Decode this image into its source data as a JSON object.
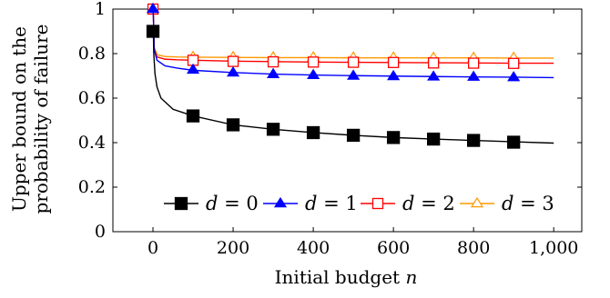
{
  "chart_data": {
    "type": "line",
    "xlabel": "Initial budget",
    "xlabel_var": "n",
    "ylabel_line1": "Upper bound on the",
    "ylabel_line2": "probability of failure",
    "xlim": [
      -100,
      1070
    ],
    "ylim": [
      0,
      1
    ],
    "xticks": [
      0,
      200,
      400,
      600,
      800,
      1000
    ],
    "xtick_labels": [
      "0",
      "200",
      "400",
      "600",
      "800",
      "1,000"
    ],
    "yticks": [
      0,
      0.2,
      0.4,
      0.6,
      0.8,
      1
    ],
    "ytick_labels": [
      "0",
      "0.2",
      "0.4",
      "0.6",
      "0.8",
      "1"
    ],
    "grid": false,
    "legend_position": "bottom-right",
    "marker_x": [
      0,
      100,
      200,
      300,
      400,
      500,
      600,
      700,
      800,
      900
    ],
    "series": [
      {
        "name": "d = 0",
        "var": "d",
        "op": "=",
        "val": "0",
        "color": "#000000",
        "marker": "square-filled",
        "curve": {
          "x": [
            1,
            2,
            5,
            10,
            20,
            50,
            100,
            200,
            300,
            400,
            500,
            600,
            700,
            800,
            900,
            1000
          ],
          "y": [
            0.9,
            0.8,
            0.71,
            0.65,
            0.6,
            0.55,
            0.52,
            0.48,
            0.46,
            0.445,
            0.433,
            0.423,
            0.416,
            0.41,
            0.404,
            0.398
          ]
        },
        "marker_y": [
          0.9,
          0.52,
          0.48,
          0.46,
          0.445,
          0.433,
          0.423,
          0.416,
          0.41,
          0.402
        ]
      },
      {
        "name": "d = 1",
        "var": "d",
        "op": "=",
        "val": "1",
        "color": "#0000ff",
        "marker": "triangle-filled",
        "curve": {
          "x": [
            0,
            1,
            3,
            10,
            30,
            60,
            100,
            200,
            300,
            400,
            500,
            600,
            700,
            800,
            900,
            1000
          ],
          "y": [
            1.0,
            0.97,
            0.82,
            0.77,
            0.745,
            0.735,
            0.725,
            0.715,
            0.708,
            0.704,
            0.701,
            0.699,
            0.697,
            0.695,
            0.694,
            0.692
          ]
        },
        "marker_y": [
          1.0,
          0.727,
          0.714,
          0.707,
          0.703,
          0.7,
          0.698,
          0.696,
          0.695,
          0.693
        ]
      },
      {
        "name": "d = 2",
        "var": "d",
        "op": "=",
        "val": "2",
        "color": "#ff0000",
        "marker": "square-open",
        "curve": {
          "x": [
            0,
            1,
            3,
            10,
            30,
            60,
            100,
            200,
            300,
            400,
            500,
            600,
            700,
            800,
            900,
            1000
          ],
          "y": [
            1.0,
            0.97,
            0.82,
            0.785,
            0.775,
            0.772,
            0.77,
            0.766,
            0.764,
            0.762,
            0.761,
            0.76,
            0.759,
            0.758,
            0.757,
            0.757
          ]
        },
        "marker_y": [
          1.0,
          0.77,
          0.765,
          0.763,
          0.762,
          0.761,
          0.76,
          0.758,
          0.757,
          0.756
        ]
      },
      {
        "name": "d = 3",
        "var": "d",
        "op": "=",
        "val": "3",
        "color": "#ff9900",
        "marker": "triangle-open",
        "curve": {
          "x": [
            0,
            1,
            3,
            10,
            30,
            60,
            100,
            200,
            300,
            400,
            500,
            600,
            700,
            800,
            900,
            1000
          ],
          "y": [
            1.0,
            0.97,
            0.83,
            0.795,
            0.787,
            0.785,
            0.784,
            0.783,
            0.782,
            0.782,
            0.781,
            0.781,
            0.781,
            0.781,
            0.78,
            0.78
          ]
        },
        "marker_y": [
          1.0,
          0.785,
          0.784,
          0.783,
          0.783,
          0.782,
          0.782,
          0.781,
          0.781,
          0.781
        ]
      }
    ]
  }
}
